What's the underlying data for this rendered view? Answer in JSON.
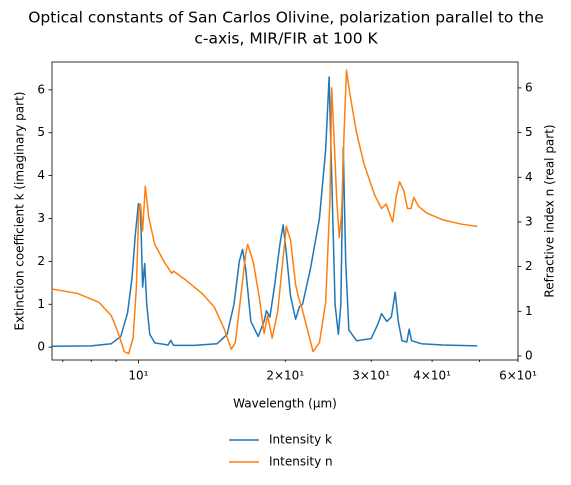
{
  "chart_data": {
    "type": "line",
    "title": [
      "Optical constants of San Carlos Olivine, polarization parallel to the",
      "c-axis, MIR/FIR at 100 K"
    ],
    "x_label": "Wavelength (μm)",
    "y_label": "Extinction coefficient k (imaginary part)",
    "y2_label": "Refractive index n (real part)",
    "xscale": "log",
    "xlim": [
      6.65,
      60
    ],
    "xticks": [
      {
        "value": 10,
        "label": "10¹"
      },
      {
        "value": 20,
        "label": "2×10¹"
      },
      {
        "value": 30,
        "label": "3×10¹"
      },
      {
        "value": 40,
        "label": "4×10¹"
      },
      {
        "value": 60,
        "label": "6×10¹"
      }
    ],
    "xminorticks": [
      7,
      8,
      9,
      50
    ],
    "ylim": [
      -0.3,
      6.65
    ],
    "yticks": [
      0,
      1,
      2,
      3,
      4,
      5,
      6
    ],
    "y2lim": [
      -0.09,
      6.58
    ],
    "y2ticks": [
      0,
      1,
      2,
      3,
      4,
      5,
      6
    ],
    "legend": "lower-center-outside",
    "series": [
      {
        "name": "Intensity k",
        "color": "#1f77b4",
        "x": [
          6.65,
          8,
          8.8,
          9.2,
          9.5,
          9.7,
          9.85,
          10.0,
          10.1,
          10.2,
          10.3,
          10.4,
          10.55,
          10.8,
          11.5,
          11.65,
          11.8,
          13,
          14.5,
          15.2,
          15.7,
          16.1,
          16.35,
          16.6,
          17.0,
          17.6,
          18.1,
          18.3,
          18.6,
          19.0,
          19.5,
          19.8,
          20.1,
          20.5,
          21.0,
          21.4,
          21.7,
          22.5,
          23.5,
          24.2,
          24.6,
          24.9,
          25.3,
          25.7,
          26.0,
          26.3,
          26.6,
          27.0,
          28,
          30,
          31,
          31.5,
          32.3,
          33.0,
          33.6,
          34.1,
          34.7,
          35.5,
          35.9,
          36.3,
          38,
          42,
          49.5
        ],
        "values": [
          0.02,
          0.03,
          0.08,
          0.25,
          0.8,
          1.6,
          2.6,
          3.35,
          3.2,
          1.4,
          1.95,
          1.0,
          0.3,
          0.1,
          0.05,
          0.16,
          0.04,
          0.04,
          0.08,
          0.3,
          1.0,
          2.0,
          2.28,
          1.8,
          0.6,
          0.25,
          0.6,
          0.85,
          0.7,
          1.4,
          2.4,
          2.85,
          2.2,
          1.2,
          0.65,
          0.95,
          1.0,
          1.8,
          3.0,
          4.6,
          6.3,
          4.0,
          1.0,
          0.3,
          1.0,
          4.65,
          2.0,
          0.4,
          0.15,
          0.2,
          0.55,
          0.78,
          0.6,
          0.7,
          1.28,
          0.6,
          0.15,
          0.12,
          0.42,
          0.15,
          0.08,
          0.05,
          0.03
        ]
      },
      {
        "name": "Intensity n",
        "color": "#ff7f0e",
        "axis": "y2",
        "x": [
          6.65,
          7.5,
          8.3,
          8.8,
          9.1,
          9.35,
          9.55,
          9.75,
          9.9,
          10.02,
          10.1,
          10.2,
          10.33,
          10.5,
          10.8,
          11.3,
          11.7,
          11.8,
          12.5,
          13.5,
          14.3,
          15.0,
          15.5,
          15.8,
          16.2,
          16.6,
          16.75,
          17.2,
          17.7,
          18.1,
          18.4,
          18.8,
          19.3,
          19.8,
          20.1,
          20.5,
          21.0,
          21.3,
          21.6,
          22.2,
          22.8,
          23.5,
          24.2,
          24.7,
          24.9,
          25.2,
          25.5,
          25.8,
          26.1,
          26.4,
          26.7,
          27.1,
          28,
          29,
          30.5,
          31.5,
          32.2,
          33.2,
          33.8,
          34.3,
          35.0,
          35.6,
          36.2,
          36.7,
          37.5,
          39,
          42,
          46,
          49.5
        ],
        "values": [
          1.5,
          1.4,
          1.2,
          0.9,
          0.5,
          0.1,
          0.05,
          0.4,
          1.5,
          3.3,
          3.4,
          2.8,
          3.8,
          3.1,
          2.5,
          2.1,
          1.85,
          1.9,
          1.7,
          1.4,
          1.1,
          0.6,
          0.15,
          0.3,
          1.3,
          2.3,
          2.5,
          2.1,
          1.3,
          0.5,
          0.9,
          0.4,
          1.0,
          2.2,
          2.9,
          2.6,
          1.6,
          1.3,
          1.1,
          0.6,
          0.1,
          0.3,
          1.2,
          3.5,
          6.0,
          4.8,
          3.5,
          2.65,
          3.2,
          5.0,
          6.4,
          5.9,
          5.0,
          4.3,
          3.6,
          3.3,
          3.4,
          3.0,
          3.6,
          3.9,
          3.7,
          3.3,
          3.3,
          3.55,
          3.35,
          3.2,
          3.05,
          2.95,
          2.9
        ]
      }
    ]
  }
}
